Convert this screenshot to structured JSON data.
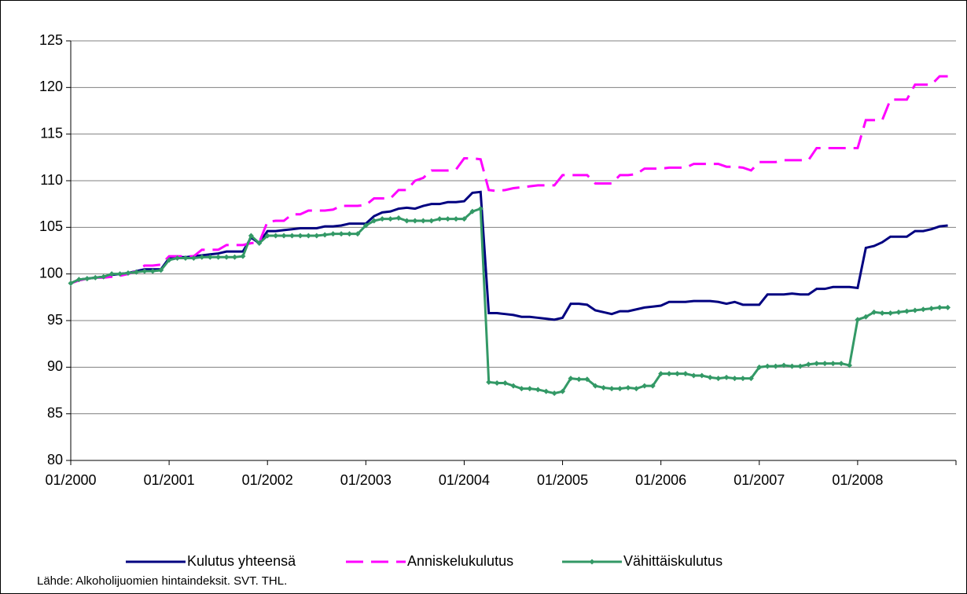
{
  "chart_data": {
    "type": "line",
    "categories": [
      "01/2000",
      null,
      null,
      null,
      null,
      null,
      null,
      null,
      null,
      null,
      null,
      null,
      "01/2001",
      null,
      null,
      null,
      null,
      null,
      null,
      null,
      null,
      null,
      null,
      null,
      "01/2002",
      null,
      null,
      null,
      null,
      null,
      null,
      null,
      null,
      null,
      null,
      null,
      "01/2003",
      null,
      null,
      null,
      null,
      null,
      null,
      null,
      null,
      null,
      null,
      null,
      "01/2004",
      null,
      null,
      null,
      null,
      null,
      null,
      null,
      null,
      null,
      null,
      null,
      "01/2005",
      null,
      null,
      null,
      null,
      null,
      null,
      null,
      null,
      null,
      null,
      null,
      "01/2006",
      null,
      null,
      null,
      null,
      null,
      null,
      null,
      null,
      null,
      null,
      null,
      "01/2007",
      null,
      null,
      null,
      null,
      null,
      null,
      null,
      null,
      null,
      null,
      null,
      "01/2008",
      null,
      null,
      null,
      null,
      null,
      null,
      null,
      null,
      null,
      null,
      null
    ],
    "series": [
      {
        "name": "Kulutus yhteensä",
        "color": "#000080",
        "dash": false,
        "marker": false,
        "values": [
          99.0,
          99.4,
          99.5,
          99.6,
          99.7,
          99.9,
          100.0,
          100.1,
          100.3,
          100.5,
          100.5,
          100.5,
          101.7,
          101.8,
          101.8,
          101.9,
          102.0,
          102.1,
          102.2,
          102.4,
          102.4,
          102.4,
          103.9,
          103.3,
          104.6,
          104.6,
          104.7,
          104.8,
          104.9,
          104.9,
          104.9,
          105.1,
          105.1,
          105.2,
          105.4,
          105.4,
          105.4,
          106.2,
          106.6,
          106.7,
          107.0,
          107.1,
          107.0,
          107.3,
          107.5,
          107.5,
          107.7,
          107.7,
          107.8,
          108.7,
          108.8,
          95.8,
          95.8,
          95.7,
          95.6,
          95.4,
          95.4,
          95.3,
          95.2,
          95.1,
          95.3,
          96.8,
          96.8,
          96.7,
          96.1,
          95.9,
          95.7,
          96.0,
          96.0,
          96.2,
          96.4,
          96.5,
          96.6,
          97.0,
          97.0,
          97.0,
          97.1,
          97.1,
          97.1,
          97.0,
          96.8,
          97.0,
          96.7,
          96.7,
          96.7,
          97.8,
          97.8,
          97.8,
          97.9,
          97.8,
          97.8,
          98.4,
          98.4,
          98.6,
          98.6,
          98.6,
          98.5,
          102.8,
          103.0,
          103.4,
          104.0,
          104.0,
          104.0,
          104.6,
          104.6,
          104.8,
          105.1,
          105.2
        ]
      },
      {
        "name": "Anniskelukulutus",
        "color": "#ff00ff",
        "dash": true,
        "marker": false,
        "values": [
          99.0,
          99.3,
          99.5,
          99.6,
          99.6,
          99.7,
          99.8,
          100.0,
          100.3,
          100.9,
          100.9,
          101.0,
          101.9,
          101.9,
          101.9,
          101.9,
          102.6,
          102.6,
          102.6,
          103.1,
          103.1,
          103.1,
          103.3,
          103.4,
          105.6,
          105.7,
          105.7,
          106.4,
          106.4,
          106.8,
          106.8,
          106.8,
          106.9,
          107.3,
          107.3,
          107.3,
          107.4,
          108.1,
          108.1,
          108.1,
          109.0,
          109.0,
          110.0,
          110.3,
          111.1,
          111.1,
          111.1,
          111.2,
          112.4,
          112.4,
          112.3,
          109.0,
          108.9,
          109.0,
          109.2,
          109.3,
          109.4,
          109.5,
          109.5,
          109.5,
          110.6,
          110.6,
          110.6,
          110.6,
          109.7,
          109.7,
          109.7,
          110.6,
          110.6,
          110.7,
          111.3,
          111.3,
          111.3,
          111.4,
          111.4,
          111.4,
          111.8,
          111.8,
          111.8,
          111.8,
          111.5,
          111.5,
          111.4,
          111.1,
          112.0,
          112.0,
          112.0,
          112.2,
          112.2,
          112.2,
          112.2,
          113.5,
          113.5,
          113.5,
          113.5,
          113.5,
          113.5,
          116.5,
          116.5,
          116.5,
          118.7,
          118.7,
          118.7,
          120.3,
          120.3,
          120.3,
          121.2,
          121.2
        ]
      },
      {
        "name": "Vähittäiskulutus",
        "color": "#339966",
        "dash": false,
        "marker": true,
        "values": [
          99.0,
          99.4,
          99.5,
          99.6,
          99.7,
          100.0,
          100.0,
          100.1,
          100.2,
          100.3,
          100.3,
          100.4,
          101.5,
          101.7,
          101.7,
          101.7,
          101.8,
          101.8,
          101.8,
          101.8,
          101.8,
          101.9,
          104.1,
          103.3,
          104.1,
          104.1,
          104.1,
          104.1,
          104.1,
          104.1,
          104.1,
          104.2,
          104.3,
          104.3,
          104.3,
          104.3,
          105.2,
          105.7,
          105.9,
          105.9,
          106.0,
          105.7,
          105.7,
          105.7,
          105.7,
          105.9,
          105.9,
          105.9,
          105.9,
          106.7,
          107.0,
          88.4,
          88.3,
          88.3,
          88.0,
          87.7,
          87.7,
          87.6,
          87.4,
          87.2,
          87.4,
          88.8,
          88.7,
          88.7,
          88.0,
          87.8,
          87.7,
          87.7,
          87.8,
          87.7,
          88.0,
          88.0,
          89.3,
          89.3,
          89.3,
          89.3,
          89.1,
          89.1,
          88.9,
          88.8,
          88.9,
          88.8,
          88.8,
          88.8,
          90.0,
          90.1,
          90.1,
          90.2,
          90.1,
          90.1,
          90.3,
          90.4,
          90.4,
          90.4,
          90.4,
          90.2,
          95.1,
          95.4,
          95.9,
          95.8,
          95.8,
          95.9,
          96.0,
          96.1,
          96.2,
          96.3,
          96.4,
          96.4
        ]
      }
    ],
    "ylim": [
      80,
      125
    ],
    "yticks": [
      80,
      85,
      90,
      95,
      100,
      105,
      110,
      115,
      120,
      125
    ],
    "grid": true,
    "legend": "bottom",
    "source": "Lähde: Alkoholijuomien hintaindeksit. SVT. THL."
  }
}
